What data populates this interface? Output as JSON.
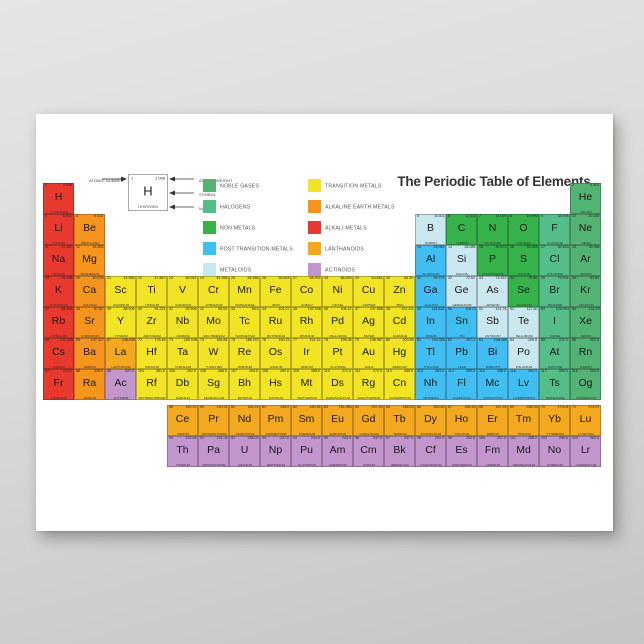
{
  "poster": {
    "title": "The Periodic Table of Elements"
  },
  "colors": {
    "noble": "#53b374",
    "halogen": "#55bd88",
    "nonmetal": "#35b34a",
    "post": "#41bef1",
    "metalloid": "#c8e7ee",
    "transition": "#f2e424",
    "alkaline": "#f7941e",
    "alkali": "#e8392e",
    "lanthanoid": "#f4a81f",
    "actinoid": "#c295cc"
  },
  "legend": {
    "items": [
      {
        "label": "NOBLE GASES",
        "key": "noble"
      },
      {
        "label": "HALOGENS",
        "key": "halogen"
      },
      {
        "label": "NON METALS",
        "key": "nonmetal"
      },
      {
        "label": "POST TRANSITION METALS",
        "key": "post"
      },
      {
        "label": "METALOIDS",
        "key": "metalloid"
      },
      {
        "label": "TRANSITION METALS",
        "key": "transition"
      },
      {
        "label": "ALKALINE EARTH METALS",
        "key": "alkaline"
      },
      {
        "label": "ALKALI METALS",
        "key": "alkali"
      },
      {
        "label": "LANTHANOIDS",
        "key": "lanthanoid"
      },
      {
        "label": "ACTINOIDS",
        "key": "actinoid"
      }
    ]
  },
  "key_diagram": {
    "labels": {
      "atomic_number": "ATOMIC NUMBER",
      "atomic_weight": "ATOMIC WEIGHT",
      "symbol": "SYMBOL",
      "name": "NAME"
    },
    "example": {
      "number": "1",
      "weight": "1.008",
      "symbol": "H",
      "name": "HYDROGEN"
    }
  },
  "elements": [
    {
      "n": 1,
      "s": "H",
      "name": "HYDROGEN",
      "w": "1.008",
      "cat": "alkali",
      "r": 1,
      "c": 1
    },
    {
      "n": 2,
      "s": "He",
      "name": "HELIUM",
      "w": "4.003",
      "cat": "noble",
      "r": 1,
      "c": 18
    },
    {
      "n": 3,
      "s": "Li",
      "name": "LITHIUM",
      "w": "6.941",
      "cat": "alkali",
      "r": 2,
      "c": 1
    },
    {
      "n": 4,
      "s": "Be",
      "name": "BERYLLIUM",
      "w": "9.012",
      "cat": "alkaline",
      "r": 2,
      "c": 2
    },
    {
      "n": 5,
      "s": "B",
      "name": "BORON",
      "w": "10.811",
      "cat": "metalloid",
      "r": 2,
      "c": 13
    },
    {
      "n": 6,
      "s": "C",
      "name": "CARBON",
      "w": "12.011",
      "cat": "nonmetal",
      "r": 2,
      "c": 14
    },
    {
      "n": 7,
      "s": "N",
      "name": "NITROGEN",
      "w": "14.007",
      "cat": "nonmetal",
      "r": 2,
      "c": 15
    },
    {
      "n": 8,
      "s": "O",
      "name": "OXYGEN",
      "w": "15.999",
      "cat": "nonmetal",
      "r": 2,
      "c": 16
    },
    {
      "n": 9,
      "s": "F",
      "name": "FLUORINE",
      "w": "18.998",
      "cat": "halogen",
      "r": 2,
      "c": 17
    },
    {
      "n": 10,
      "s": "Ne",
      "name": "NEON",
      "w": "20.180",
      "cat": "noble",
      "r": 2,
      "c": 18
    },
    {
      "n": 11,
      "s": "Na",
      "name": "SODIUM",
      "w": "22.990",
      "cat": "alkali",
      "r": 3,
      "c": 1
    },
    {
      "n": 12,
      "s": "Mg",
      "name": "MAGNESIUM",
      "w": "24.305",
      "cat": "alkaline",
      "r": 3,
      "c": 2
    },
    {
      "n": 13,
      "s": "Al",
      "name": "ALUMINIUM",
      "w": "26.982",
      "cat": "post",
      "r": 3,
      "c": 13
    },
    {
      "n": 14,
      "s": "Si",
      "name": "SILICON",
      "w": "28.086",
      "cat": "metalloid",
      "r": 3,
      "c": 14
    },
    {
      "n": 15,
      "s": "P",
      "name": "PHOSPHORUS",
      "w": "30.974",
      "cat": "nonmetal",
      "r": 3,
      "c": 15
    },
    {
      "n": 16,
      "s": "S",
      "name": "SULFUR",
      "w": "32.065",
      "cat": "nonmetal",
      "r": 3,
      "c": 16
    },
    {
      "n": 17,
      "s": "Cl",
      "name": "CHLORINE",
      "w": "35.453",
      "cat": "halogen",
      "r": 3,
      "c": 17
    },
    {
      "n": 18,
      "s": "Ar",
      "name": "ARGON",
      "w": "39.948",
      "cat": "noble",
      "r": 3,
      "c": 18
    },
    {
      "n": 19,
      "s": "K",
      "name": "POTASSIUM",
      "w": "39.098",
      "cat": "alkali",
      "r": 4,
      "c": 1
    },
    {
      "n": 20,
      "s": "Ca",
      "name": "CALCIUM",
      "w": "40.078",
      "cat": "alkaline",
      "r": 4,
      "c": 2
    },
    {
      "n": 21,
      "s": "Sc",
      "name": "SCANDIUM",
      "w": "44.956",
      "cat": "transition",
      "r": 4,
      "c": 3
    },
    {
      "n": 22,
      "s": "Ti",
      "name": "TITANIUM",
      "w": "47.867",
      "cat": "transition",
      "r": 4,
      "c": 4
    },
    {
      "n": 23,
      "s": "V",
      "name": "VANADIUM",
      "w": "50.942",
      "cat": "transition",
      "r": 4,
      "c": 5
    },
    {
      "n": 24,
      "s": "Cr",
      "name": "CHROMIUM",
      "w": "51.996",
      "cat": "transition",
      "r": 4,
      "c": 6
    },
    {
      "n": 25,
      "s": "Mn",
      "name": "MANGANESE",
      "w": "54.938",
      "cat": "transition",
      "r": 4,
      "c": 7
    },
    {
      "n": 26,
      "s": "Fe",
      "name": "IRON",
      "w": "55.845",
      "cat": "transition",
      "r": 4,
      "c": 8
    },
    {
      "n": 27,
      "s": "Co",
      "name": "COBALT",
      "w": "58.933",
      "cat": "transition",
      "r": 4,
      "c": 9
    },
    {
      "n": 28,
      "s": "Ni",
      "name": "NICKEL",
      "w": "58.693",
      "cat": "transition",
      "r": 4,
      "c": 10
    },
    {
      "n": 29,
      "s": "Cu",
      "name": "COPPER",
      "w": "63.546",
      "cat": "transition",
      "r": 4,
      "c": 11
    },
    {
      "n": 30,
      "s": "Zn",
      "name": "ZINC",
      "w": "65.39",
      "cat": "transition",
      "r": 4,
      "c": 12
    },
    {
      "n": 31,
      "s": "Ga",
      "name": "GALLIUM",
      "w": "69.723",
      "cat": "post",
      "r": 4,
      "c": 13
    },
    {
      "n": 32,
      "s": "Ge",
      "name": "GERMANIUM",
      "w": "72.61",
      "cat": "metalloid",
      "r": 4,
      "c": 14
    },
    {
      "n": 33,
      "s": "As",
      "name": "ARSENIC",
      "w": "74.922",
      "cat": "metalloid",
      "r": 4,
      "c": 15
    },
    {
      "n": 34,
      "s": "Se",
      "name": "SELENIUM",
      "w": "78.96",
      "cat": "nonmetal",
      "r": 4,
      "c": 16
    },
    {
      "n": 35,
      "s": "Br",
      "name": "BROMINE",
      "w": "79.904",
      "cat": "halogen",
      "r": 4,
      "c": 17
    },
    {
      "n": 36,
      "s": "Kr",
      "name": "KRYPTON",
      "w": "83.80",
      "cat": "noble",
      "r": 4,
      "c": 18
    },
    {
      "n": 37,
      "s": "Rb",
      "name": "RUBIDIUM",
      "w": "85.468",
      "cat": "alkali",
      "r": 5,
      "c": 1
    },
    {
      "n": 38,
      "s": "Sr",
      "name": "STRONTIUM",
      "w": "87.62",
      "cat": "alkaline",
      "r": 5,
      "c": 2
    },
    {
      "n": 39,
      "s": "Y",
      "name": "YTTRIUM",
      "w": "88.906",
      "cat": "transition",
      "r": 5,
      "c": 3
    },
    {
      "n": 40,
      "s": "Zr",
      "name": "ZIRCONIUM",
      "w": "91.224",
      "cat": "transition",
      "r": 5,
      "c": 4
    },
    {
      "n": 41,
      "s": "Nb",
      "name": "NIOBIUM",
      "w": "92.906",
      "cat": "transition",
      "r": 5,
      "c": 5
    },
    {
      "n": 42,
      "s": "Mo",
      "name": "MOLYBDENUM",
      "w": "95.94",
      "cat": "transition",
      "r": 5,
      "c": 6
    },
    {
      "n": 43,
      "s": "Tc",
      "name": "TECHNETIUM",
      "w": "98.0",
      "cat": "transition",
      "r": 5,
      "c": 7
    },
    {
      "n": 44,
      "s": "Ru",
      "name": "RUTHENIUM",
      "w": "101.07",
      "cat": "transition",
      "r": 5,
      "c": 8
    },
    {
      "n": 45,
      "s": "Rh",
      "name": "RHODIUM",
      "w": "102.906",
      "cat": "transition",
      "r": 5,
      "c": 9
    },
    {
      "n": 46,
      "s": "Pd",
      "name": "PALLADIUM",
      "w": "106.42",
      "cat": "transition",
      "r": 5,
      "c": 10
    },
    {
      "n": 47,
      "s": "Ag",
      "name": "SILVER",
      "w": "107.868",
      "cat": "transition",
      "r": 5,
      "c": 11
    },
    {
      "n": 48,
      "s": "Cd",
      "name": "CADMIUM",
      "w": "112.411",
      "cat": "transition",
      "r": 5,
      "c": 12
    },
    {
      "n": 49,
      "s": "In",
      "name": "INDIUM",
      "w": "114.818",
      "cat": "post",
      "r": 5,
      "c": 13
    },
    {
      "n": 50,
      "s": "Sn",
      "name": "TIN",
      "w": "118.71",
      "cat": "post",
      "r": 5,
      "c": 14
    },
    {
      "n": 51,
      "s": "Sb",
      "name": "ANTIMONY",
      "w": "121.76",
      "cat": "metalloid",
      "r": 5,
      "c": 15
    },
    {
      "n": 52,
      "s": "Te",
      "name": "TELLURIUM",
      "w": "127.60",
      "cat": "metalloid",
      "r": 5,
      "c": 16
    },
    {
      "n": 53,
      "s": "I",
      "name": "IODINE",
      "w": "126.904",
      "cat": "halogen",
      "r": 5,
      "c": 17
    },
    {
      "n": 54,
      "s": "Xe",
      "name": "XENON",
      "w": "131.29",
      "cat": "noble",
      "r": 5,
      "c": 18
    },
    {
      "n": 55,
      "s": "Cs",
      "name": "CESIUM",
      "w": "132.905",
      "cat": "alkali",
      "r": 6,
      "c": 1
    },
    {
      "n": 56,
      "s": "Ba",
      "name": "BARIUM",
      "w": "137.327",
      "cat": "alkaline",
      "r": 6,
      "c": 2
    },
    {
      "n": 57,
      "s": "La",
      "name": "LANTHANUM",
      "w": "138.906",
      "cat": "lanthanoid",
      "r": 6,
      "c": 3
    },
    {
      "n": 72,
      "s": "Hf",
      "name": "HAFNIUM",
      "w": "178.49",
      "cat": "transition",
      "r": 6,
      "c": 4
    },
    {
      "n": 73,
      "s": "Ta",
      "name": "TANTALUM",
      "w": "180.948",
      "cat": "transition",
      "r": 6,
      "c": 5
    },
    {
      "n": 74,
      "s": "W",
      "name": "TUNGSTEN",
      "w": "183.84",
      "cat": "transition",
      "r": 6,
      "c": 6
    },
    {
      "n": 75,
      "s": "Re",
      "name": "RHENIUM",
      "w": "186.207",
      "cat": "transition",
      "r": 6,
      "c": 7
    },
    {
      "n": 76,
      "s": "Os",
      "name": "OSMIUM",
      "w": "190.23",
      "cat": "transition",
      "r": 6,
      "c": 8
    },
    {
      "n": 77,
      "s": "Ir",
      "name": "IRIDIUM",
      "w": "192.22",
      "cat": "transition",
      "r": 6,
      "c": 9
    },
    {
      "n": 78,
      "s": "Pt",
      "name": "PLATINUM",
      "w": "195.08",
      "cat": "transition",
      "r": 6,
      "c": 10
    },
    {
      "n": 79,
      "s": "Au",
      "name": "GOLD",
      "w": "196.967",
      "cat": "transition",
      "r": 6,
      "c": 11
    },
    {
      "n": 80,
      "s": "Hg",
      "name": "MERCURY",
      "w": "200.59",
      "cat": "transition",
      "r": 6,
      "c": 12
    },
    {
      "n": 81,
      "s": "Tl",
      "name": "THALLIUM",
      "w": "204.383",
      "cat": "post",
      "r": 6,
      "c": 13
    },
    {
      "n": 82,
      "s": "Pb",
      "name": "LEAD",
      "w": "207.2",
      "cat": "post",
      "r": 6,
      "c": 14
    },
    {
      "n": 83,
      "s": "Bi",
      "name": "BISMUTH",
      "w": "208.980",
      "cat": "post",
      "r": 6,
      "c": 15
    },
    {
      "n": 84,
      "s": "Po",
      "name": "POLONIUM",
      "w": "209.0",
      "cat": "metalloid",
      "r": 6,
      "c": 16
    },
    {
      "n": 85,
      "s": "At",
      "name": "ASTATINE",
      "w": "210.0",
      "cat": "halogen",
      "r": 6,
      "c": 17
    },
    {
      "n": 86,
      "s": "Rn",
      "name": "RADON",
      "w": "222.0",
      "cat": "noble",
      "r": 6,
      "c": 18
    },
    {
      "n": 87,
      "s": "Fr",
      "name": "FRANCIUM",
      "w": "223.0",
      "cat": "alkali",
      "r": 7,
      "c": 1
    },
    {
      "n": 88,
      "s": "Ra",
      "name": "RADIUM",
      "w": "226.0",
      "cat": "alkaline",
      "r": 7,
      "c": 2
    },
    {
      "n": 89,
      "s": "Ac",
      "name": "ACTINIUM",
      "w": "227.0",
      "cat": "actinoid",
      "r": 7,
      "c": 3
    },
    {
      "n": 104,
      "s": "Rf",
      "name": "RUTHERFORDIUM",
      "w": "261.0",
      "cat": "transition",
      "r": 7,
      "c": 4
    },
    {
      "n": 105,
      "s": "Db",
      "name": "DUBNIUM",
      "w": "262.0",
      "cat": "transition",
      "r": 7,
      "c": 5
    },
    {
      "n": 106,
      "s": "Sg",
      "name": "SEABORGIUM",
      "w": "266.0",
      "cat": "transition",
      "r": 7,
      "c": 6
    },
    {
      "n": 107,
      "s": "Bh",
      "name": "BOHRIUM",
      "w": "264.0",
      "cat": "transition",
      "r": 7,
      "c": 7
    },
    {
      "n": 108,
      "s": "Hs",
      "name": "HASSIUM",
      "w": "269.0",
      "cat": "transition",
      "r": 7,
      "c": 8
    },
    {
      "n": 109,
      "s": "Mt",
      "name": "MEITNERIUM",
      "w": "268.0",
      "cat": "transition",
      "r": 7,
      "c": 9
    },
    {
      "n": 110,
      "s": "Ds",
      "name": "DARMSTADTIUM",
      "w": "271.0",
      "cat": "transition",
      "r": 7,
      "c": 10
    },
    {
      "n": 111,
      "s": "Rg",
      "name": "ROENTGENIUM",
      "w": "272.0",
      "cat": "transition",
      "r": 7,
      "c": 11
    },
    {
      "n": 112,
      "s": "Cn",
      "name": "COPERNICIUM",
      "w": "285.0",
      "cat": "transition",
      "r": 7,
      "c": 12
    },
    {
      "n": 113,
      "s": "Nh",
      "name": "NIHONIUM",
      "w": "284.0",
      "cat": "post",
      "r": 7,
      "c": 13
    },
    {
      "n": 114,
      "s": "Fl",
      "name": "FLEROVIUM",
      "w": "289.0",
      "cat": "post",
      "r": 7,
      "c": 14
    },
    {
      "n": 115,
      "s": "Mc",
      "name": "MOSCOVIUM",
      "w": "288.0",
      "cat": "post",
      "r": 7,
      "c": 15
    },
    {
      "n": 116,
      "s": "Lv",
      "name": "LIVERMORIUM",
      "w": "292.0",
      "cat": "post",
      "r": 7,
      "c": 16
    },
    {
      "n": 117,
      "s": "Ts",
      "name": "TENNESSINE",
      "w": "294.0",
      "cat": "halogen",
      "r": 7,
      "c": 17
    },
    {
      "n": 118,
      "s": "Og",
      "name": "OGANESSON",
      "w": "294.0",
      "cat": "noble",
      "r": 7,
      "c": 18
    },
    {
      "n": 58,
      "s": "Ce",
      "name": "CERIUM",
      "w": "140.12",
      "cat": "lanthanoid",
      "r": 8,
      "c": 5
    },
    {
      "n": 59,
      "s": "Pr",
      "name": "PRASEODYMIUM",
      "w": "140.91",
      "cat": "lanthanoid",
      "r": 8,
      "c": 6
    },
    {
      "n": 60,
      "s": "Nd",
      "name": "NEODYMIUM",
      "w": "144.24",
      "cat": "lanthanoid",
      "r": 8,
      "c": 7
    },
    {
      "n": 61,
      "s": "Pm",
      "name": "PROMETHIUM",
      "w": "145.0",
      "cat": "lanthanoid",
      "r": 8,
      "c": 8
    },
    {
      "n": 62,
      "s": "Sm",
      "name": "SAMARIUM",
      "w": "150.36",
      "cat": "lanthanoid",
      "r": 8,
      "c": 9
    },
    {
      "n": 63,
      "s": "Eu",
      "name": "EUROPIUM",
      "w": "151.964",
      "cat": "lanthanoid",
      "r": 8,
      "c": 10
    },
    {
      "n": 64,
      "s": "Gd",
      "name": "GADOLINIUM",
      "w": "157.25",
      "cat": "lanthanoid",
      "r": 8,
      "c": 11
    },
    {
      "n": 65,
      "s": "Tb",
      "name": "TERBIUM",
      "w": "158.93",
      "cat": "lanthanoid",
      "r": 8,
      "c": 12
    },
    {
      "n": 66,
      "s": "Dy",
      "name": "DYSPROSIUM",
      "w": "162.50",
      "cat": "lanthanoid",
      "r": 8,
      "c": 13
    },
    {
      "n": 67,
      "s": "Ho",
      "name": "HOLMIUM",
      "w": "164.93",
      "cat": "lanthanoid",
      "r": 8,
      "c": 14
    },
    {
      "n": 68,
      "s": "Er",
      "name": "ERBIUM",
      "w": "167.26",
      "cat": "lanthanoid",
      "r": 8,
      "c": 15
    },
    {
      "n": 69,
      "s": "Tm",
      "name": "THULIUM",
      "w": "168.93",
      "cat": "lanthanoid",
      "r": 8,
      "c": 16
    },
    {
      "n": 70,
      "s": "Yb",
      "name": "YTTERBIUM",
      "w": "173.04",
      "cat": "lanthanoid",
      "r": 8,
      "c": 17
    },
    {
      "n": 71,
      "s": "Lu",
      "name": "LUTETIUM",
      "w": "174.97",
      "cat": "lanthanoid",
      "r": 8,
      "c": 18
    },
    {
      "n": 90,
      "s": "Th",
      "name": "THORIUM",
      "w": "232.04",
      "cat": "actinoid",
      "r": 9,
      "c": 5
    },
    {
      "n": 91,
      "s": "Pa",
      "name": "PROTACTINIUM",
      "w": "231.04",
      "cat": "actinoid",
      "r": 9,
      "c": 6
    },
    {
      "n": 92,
      "s": "U",
      "name": "URANIUM",
      "w": "238.03",
      "cat": "actinoid",
      "r": 9,
      "c": 7
    },
    {
      "n": 93,
      "s": "Np",
      "name": "NEPTUNIUM",
      "w": "237.0",
      "cat": "actinoid",
      "r": 9,
      "c": 8
    },
    {
      "n": 94,
      "s": "Pu",
      "name": "PLUTONIUM",
      "w": "244.0",
      "cat": "actinoid",
      "r": 9,
      "c": 9
    },
    {
      "n": 95,
      "s": "Am",
      "name": "AMERICIUM",
      "w": "243.0",
      "cat": "actinoid",
      "r": 9,
      "c": 10
    },
    {
      "n": 96,
      "s": "Cm",
      "name": "CURIUM",
      "w": "247.0",
      "cat": "actinoid",
      "r": 9,
      "c": 11
    },
    {
      "n": 97,
      "s": "Bk",
      "name": "BERKELIUM",
      "w": "247.0",
      "cat": "actinoid",
      "r": 9,
      "c": 12
    },
    {
      "n": 98,
      "s": "Cf",
      "name": "CALIFORNIUM",
      "w": "251.0",
      "cat": "actinoid",
      "r": 9,
      "c": 13
    },
    {
      "n": 99,
      "s": "Es",
      "name": "EINSTEINIUM",
      "w": "252.0",
      "cat": "actinoid",
      "r": 9,
      "c": 14
    },
    {
      "n": 100,
      "s": "Fm",
      "name": "FERMIUM",
      "w": "257.0",
      "cat": "actinoid",
      "r": 9,
      "c": 15
    },
    {
      "n": 101,
      "s": "Md",
      "name": "MENDELEVIUM",
      "w": "258.0",
      "cat": "actinoid",
      "r": 9,
      "c": 16
    },
    {
      "n": 102,
      "s": "No",
      "name": "NOBELIUM",
      "w": "259.0",
      "cat": "actinoid",
      "r": 9,
      "c": 17
    },
    {
      "n": 103,
      "s": "Lr",
      "name": "LAWRENCIUM",
      "w": "262.0",
      "cat": "actinoid",
      "r": 9,
      "c": 18
    }
  ]
}
